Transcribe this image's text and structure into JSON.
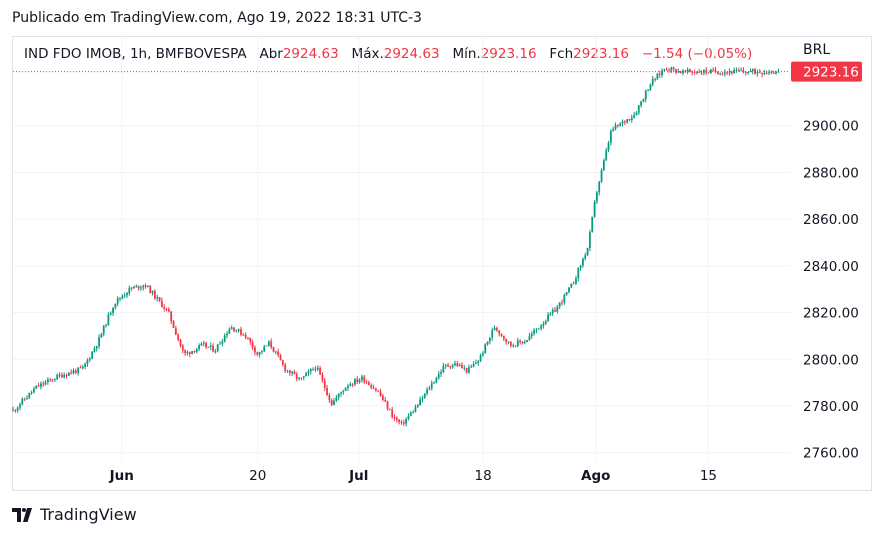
{
  "header": {
    "published": "Publicado em TradingView.com, Ago 19, 2022 18:31 UTC-3"
  },
  "legend": {
    "symbol": "IND FDO IMOB, 1h, BMFBOVESPA",
    "open_label": "Abr",
    "open_value": "2924.63",
    "high_label": "Máx.",
    "high_value": "2924.63",
    "low_label": "Mín.",
    "low_value": "2923.16",
    "close_label": "Fch",
    "close_value": "2923.16",
    "change": "−1.54 (−0.05%)"
  },
  "currency": "BRL",
  "footer": {
    "brand": "TradingView"
  },
  "colors": {
    "up": "#089981",
    "down": "#f23645",
    "grid": "#f0f3fa",
    "last_price_bg": "#f23645"
  },
  "chart_data": {
    "type": "candlestick",
    "y_ticks": [
      "2760.00",
      "2780.00",
      "2800.00",
      "2820.00",
      "2840.00",
      "2860.00",
      "2880.00",
      "2900.00"
    ],
    "ylim": [
      2756,
      2938
    ],
    "x_ticks": [
      {
        "label": "Jun",
        "pos": 0.14,
        "bold": true
      },
      {
        "label": "20",
        "pos": 0.315,
        "bold": false
      },
      {
        "label": "Jul",
        "pos": 0.445,
        "bold": true
      },
      {
        "label": "18",
        "pos": 0.605,
        "bold": false
      },
      {
        "label": "Ago",
        "pos": 0.75,
        "bold": true
      },
      {
        "label": "15",
        "pos": 0.895,
        "bold": false
      }
    ],
    "last_price": "2923.16",
    "last_value": 2923.16,
    "path_x": [
      0.0,
      0.03,
      0.06,
      0.09,
      0.11,
      0.13,
      0.15,
      0.17,
      0.185,
      0.2,
      0.22,
      0.245,
      0.26,
      0.28,
      0.3,
      0.315,
      0.33,
      0.35,
      0.37,
      0.39,
      0.41,
      0.43,
      0.45,
      0.47,
      0.49,
      0.5,
      0.52,
      0.54,
      0.555,
      0.57,
      0.585,
      0.6,
      0.62,
      0.64,
      0.66,
      0.68,
      0.7,
      0.72,
      0.74,
      0.75,
      0.77,
      0.8,
      0.82,
      0.84,
      0.86,
      0.875,
      0.89,
      0.91,
      0.93,
      0.95,
      0.96,
      0.97,
      0.98,
      0.985,
      1.0
    ],
    "path_y": [
      2778,
      2788,
      2793,
      2796,
      2808,
      2824,
      2830,
      2832,
      2826,
      2820,
      2802,
      2806,
      2804,
      2814,
      2810,
      2802,
      2807,
      2796,
      2791,
      2797,
      2781,
      2789,
      2792,
      2786,
      2775,
      2772,
      2780,
      2790,
      2797,
      2798,
      2795,
      2800,
      2814,
      2806,
      2808,
      2815,
      2822,
      2832,
      2848,
      2870,
      2898,
      2905,
      2918,
      2925,
      2923,
      2923.16,
      2923.16,
      2923.16,
      2923.16,
      2923.16,
      2923.16,
      2923.16,
      2923.16,
      2923.16,
      2923.16
    ]
  }
}
